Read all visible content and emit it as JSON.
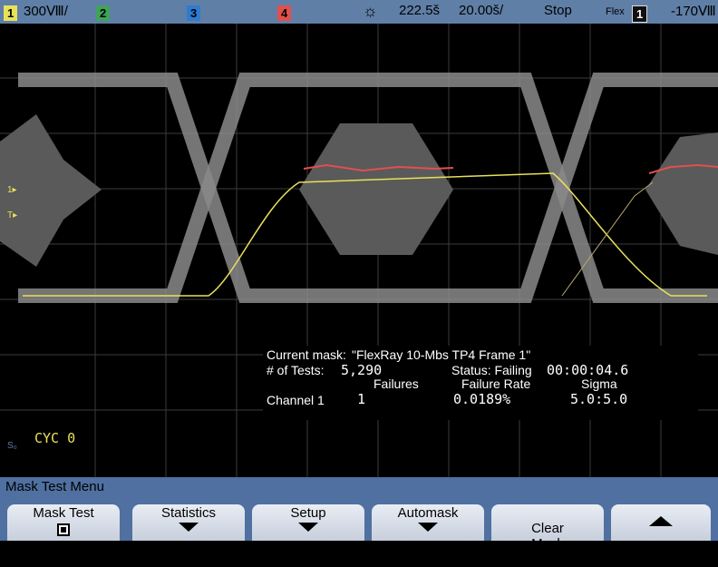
{
  "status": {
    "ch1_num": "1",
    "ch1_scale": "300Ⅷ/",
    "ch2_num": "2",
    "ch3_num": "3",
    "ch4_num": "4",
    "trigger_icon": "sun-trigger-icon",
    "time_delay": "222.5š",
    "time_scale": "20.00š/",
    "run_state": "Stop",
    "trigger_source_label": "Flex",
    "trigger_channel": "1",
    "trigger_level": "-170Ⅷ"
  },
  "markers": {
    "ch1_ground": "1▸",
    "trigger": "T▸",
    "s_marker": "S₀"
  },
  "stats": {
    "current_mask_label": "Current mask:",
    "current_mask_value": "\"FlexRay 10-Mbs TP4 Frame 1\"",
    "tests_label": "# of Tests:",
    "tests_value": "5,290",
    "status_label": "Status: Failing",
    "elapsed": "00:00:04.6",
    "failures_header": "Failures",
    "failure_rate_header": "Failure Rate",
    "sigma_header": "Sigma",
    "channel_label": "Channel 1",
    "failures_value": "1",
    "failure_rate_value": "0.0189%",
    "sigma_value": "5.0:5.0"
  },
  "cycle_label": "CYC 0",
  "menu": {
    "title": "Mask Test Menu",
    "keys": [
      {
        "label": "Mask Test"
      },
      {
        "label": "Statistics"
      },
      {
        "label": "Setup"
      },
      {
        "label": "Automask"
      },
      {
        "label": "Clear\nMask"
      },
      {
        "label": ""
      }
    ]
  },
  "colors": {
    "status_bar": "#5f7fa7",
    "ch1": "#e8e15a",
    "ch2": "#3fa35a",
    "ch3": "#2f7bd0",
    "ch4": "#e0504e",
    "mask_region": "#5a5a5a",
    "eye_trace": "#8a8a8a",
    "failure_trace": "#e0504e"
  }
}
